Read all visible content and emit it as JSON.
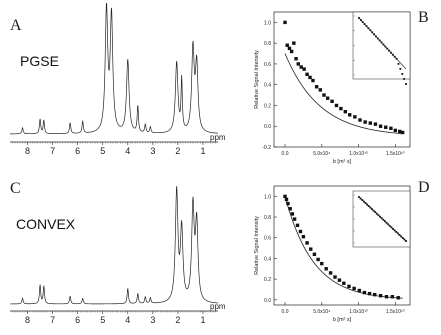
{
  "panels": {
    "A": {
      "letter": "A",
      "method": "PGSE"
    },
    "B": {
      "letter": "B"
    },
    "C": {
      "letter": "C",
      "method": "CONVEX"
    },
    "D": {
      "letter": "D"
    }
  },
  "chart_data": [
    {
      "panel": "A",
      "type": "line",
      "title": "PGSE",
      "xlabel": "ppm",
      "x_reversed": true,
      "xticks": [
        "8",
        "7",
        "6",
        "5",
        "4",
        "3",
        "2",
        "1"
      ],
      "xlim": [
        8.7,
        0.4
      ],
      "peaks": [
        {
          "ppm": 8.2,
          "h": 0.05
        },
        {
          "ppm": 7.5,
          "h": 0.12
        },
        {
          "ppm": 7.35,
          "h": 0.11
        },
        {
          "ppm": 6.3,
          "h": 0.09
        },
        {
          "ppm": 5.8,
          "h": 0.1
        },
        {
          "ppm": 4.85,
          "h": 1.0
        },
        {
          "ppm": 4.65,
          "h": 0.95
        },
        {
          "ppm": 4.0,
          "h": 0.6
        },
        {
          "ppm": 3.6,
          "h": 0.22
        },
        {
          "ppm": 3.3,
          "h": 0.07
        },
        {
          "ppm": 3.1,
          "h": 0.05
        },
        {
          "ppm": 2.05,
          "h": 0.58
        },
        {
          "ppm": 1.85,
          "h": 0.42
        },
        {
          "ppm": 1.4,
          "h": 0.68
        },
        {
          "ppm": 1.25,
          "h": 0.55
        }
      ]
    },
    {
      "panel": "B",
      "type": "scatter",
      "xlabel": "b [m² s]",
      "ylabel": "Relative Signal Intensity",
      "xlim": [
        -1500000000.0,
        17000000000.0
      ],
      "ylim": [
        -0.2,
        1.1
      ],
      "xticks": [
        "0.0",
        "5.0x10⁹",
        "1.0x10¹⁰",
        "1.5x10¹⁰"
      ],
      "yticks": [
        "-0.2",
        "0.0",
        "0.2",
        "0.4",
        "0.6",
        "0.8",
        "1.0"
      ],
      "series": [
        {
          "values_x": [
            0,
            300000000.0,
            600000000.0,
            900000000.0,
            1200000000.0,
            1500000000.0,
            1800000000.0,
            2200000000.0,
            2600000000.0,
            3000000000.0,
            3400000000.0,
            3800000000.0,
            4300000000.0,
            4800000000.0,
            5300000000.0,
            5800000000.0,
            6400000000.0,
            7000000000.0,
            7600000000.0,
            8200000000.0,
            8800000000.0,
            9500000000.0,
            10200000000.0,
            10900000000.0,
            11600000000.0,
            12300000000.0,
            13000000000.0,
            13700000000.0,
            14400000000.0,
            15000000000.0,
            15600000000.0,
            16000000000.0
          ],
          "values_y": [
            1.0,
            0.78,
            0.75,
            0.72,
            0.8,
            0.65,
            0.6,
            0.57,
            0.55,
            0.5,
            0.47,
            0.44,
            0.38,
            0.35,
            0.3,
            0.27,
            0.24,
            0.2,
            0.17,
            0.14,
            0.11,
            0.09,
            0.06,
            0.04,
            0.03,
            0.02,
            0.0,
            -0.01,
            -0.02,
            -0.04,
            -0.05,
            -0.06
          ]
        }
      ],
      "fit": {
        "type": "exponential",
        "amplitude": 0.8,
        "rate": 2.1e-10,
        "offset": -0.1
      },
      "inset": {
        "type": "scatter",
        "scale": "log"
      }
    },
    {
      "panel": "C",
      "type": "line",
      "title": "CONVEX",
      "xlabel": "ppm",
      "x_reversed": true,
      "xticks": [
        "8",
        "7",
        "6",
        "5",
        "4",
        "3",
        "2",
        "1"
      ],
      "xlim": [
        8.7,
        0.4
      ],
      "peaks": [
        {
          "ppm": 8.2,
          "h": 0.05
        },
        {
          "ppm": 7.5,
          "h": 0.17
        },
        {
          "ppm": 7.35,
          "h": 0.16
        },
        {
          "ppm": 6.3,
          "h": 0.07
        },
        {
          "ppm": 5.8,
          "h": 0.05
        },
        {
          "ppm": 4.0,
          "h": 0.14
        },
        {
          "ppm": 3.6,
          "h": 0.09
        },
        {
          "ppm": 3.3,
          "h": 0.06
        },
        {
          "ppm": 3.1,
          "h": 0.05
        },
        {
          "ppm": 2.05,
          "h": 1.0
        },
        {
          "ppm": 1.85,
          "h": 0.65
        },
        {
          "ppm": 1.4,
          "h": 0.85
        },
        {
          "ppm": 1.25,
          "h": 0.7
        }
      ]
    },
    {
      "panel": "D",
      "type": "scatter",
      "xlabel": "b [m² s]",
      "ylabel": "Relative Signal Intensity",
      "xlim": [
        -1500000000.0,
        17000000000.0
      ],
      "ylim": [
        -0.05,
        1.1
      ],
      "xticks": [
        "0.0",
        "5.0x10⁹",
        "1.0x10¹⁰",
        "1.5x10¹⁰"
      ],
      "yticks": [
        "0.0",
        "0.2",
        "0.4",
        "0.6",
        "0.8",
        "1.0"
      ],
      "series": [
        {
          "values_x": [
            0,
            200000000.0,
            400000000.0,
            700000000.0,
            1000000000.0,
            1300000000.0,
            1700000000.0,
            2100000000.0,
            2500000000.0,
            3000000000.0,
            3500000000.0,
            4000000000.0,
            4500000000.0,
            5000000000.0,
            5600000000.0,
            6200000000.0,
            6800000000.0,
            7400000000.0,
            8000000000.0,
            8700000000.0,
            9400000000.0,
            10100000000.0,
            10800000000.0,
            11500000000.0,
            12200000000.0,
            13000000000.0,
            13800000000.0,
            14600000000.0,
            15400000000.0
          ],
          "values_y": [
            1.0,
            0.97,
            0.93,
            0.88,
            0.83,
            0.78,
            0.72,
            0.66,
            0.61,
            0.55,
            0.49,
            0.44,
            0.39,
            0.35,
            0.3,
            0.26,
            0.22,
            0.19,
            0.16,
            0.13,
            0.11,
            0.09,
            0.07,
            0.06,
            0.05,
            0.04,
            0.03,
            0.03,
            0.02
          ]
        }
      ],
      "fit": {
        "type": "exponential",
        "amplitude": 1.0,
        "rate": 2.6e-10,
        "offset": 0.0
      },
      "inset": {
        "type": "scatter",
        "scale": "log"
      }
    }
  ]
}
